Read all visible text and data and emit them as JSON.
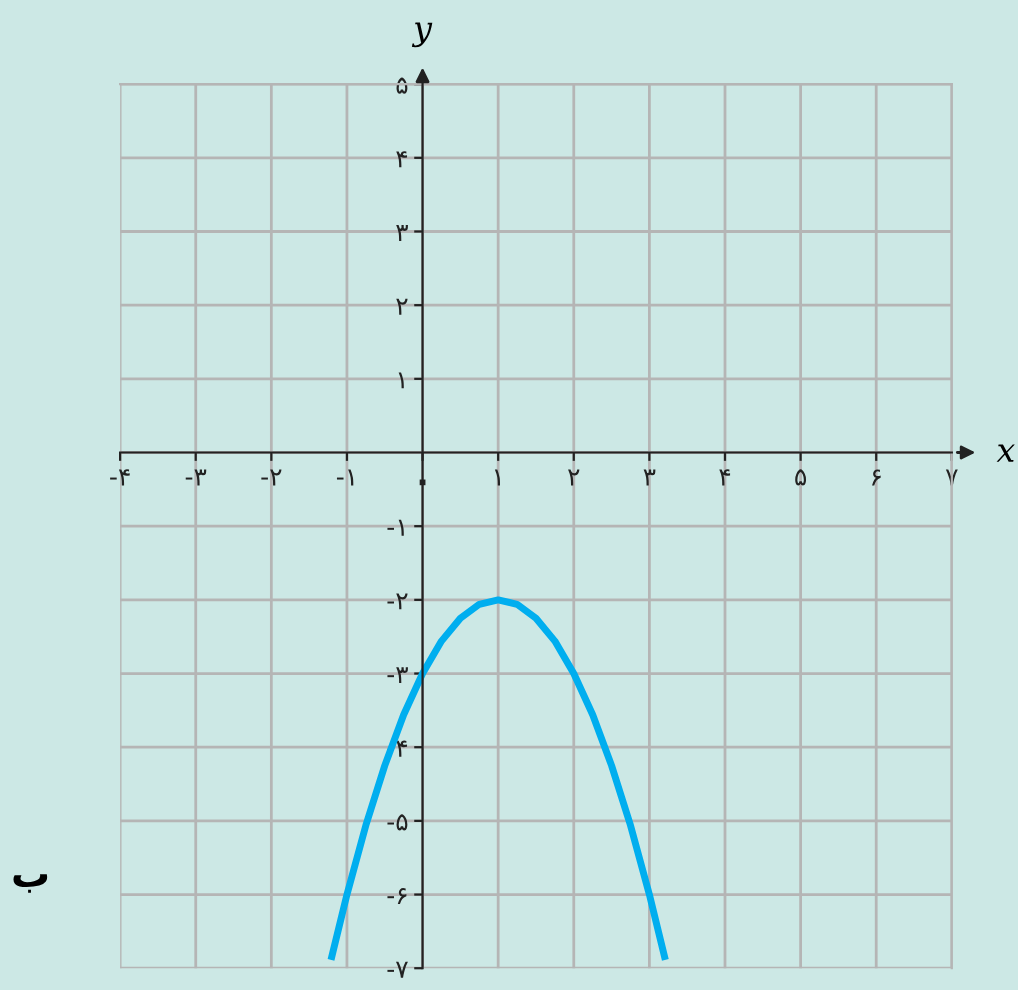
{
  "chart_data": {
    "type": "line",
    "xlabel": "x",
    "ylabel": "y",
    "x": [
      -1.2,
      -1,
      -0.75,
      -0.5,
      -0.25,
      0,
      0.25,
      0.5,
      0.75,
      1,
      1.25,
      1.5,
      1.75,
      2,
      2.25,
      2.5,
      2.75,
      3,
      3.2
    ],
    "series": [
      {
        "color": "#00aeef",
        "values": [
          -6.84,
          -6,
          -5.06,
          -4.25,
          -3.56,
          -3,
          -2.56,
          -2.25,
          -2.06,
          -2,
          -2.06,
          -2.25,
          -2.56,
          -3,
          -3.56,
          -4.25,
          -5.06,
          -6,
          -6.84
        ]
      }
    ],
    "xlim": [
      -4,
      7
    ],
    "ylim": [
      -7,
      5
    ],
    "xticks": [
      {
        "value": -4,
        "label": "-۴"
      },
      {
        "value": -3,
        "label": "-۳"
      },
      {
        "value": -2,
        "label": "-۲"
      },
      {
        "value": -1,
        "label": "-۱"
      },
      {
        "value": 0,
        "label": "۰"
      },
      {
        "value": 1,
        "label": "۱"
      },
      {
        "value": 2,
        "label": "۲"
      },
      {
        "value": 3,
        "label": "۳"
      },
      {
        "value": 4,
        "label": "۴"
      },
      {
        "value": 5,
        "label": "۵"
      },
      {
        "value": 6,
        "label": "۶"
      },
      {
        "value": 7,
        "label": "۷"
      }
    ],
    "yticks": [
      {
        "value": -7,
        "label": "-۷"
      },
      {
        "value": -6,
        "label": "-۶"
      },
      {
        "value": -5,
        "label": "-۵"
      },
      {
        "value": -4,
        "label": "-۴"
      },
      {
        "value": -3,
        "label": "-۳"
      },
      {
        "value": -2,
        "label": "-۲"
      },
      {
        "value": -1,
        "label": "-۱"
      },
      {
        "value": 1,
        "label": "۱"
      },
      {
        "value": 2,
        "label": "۲"
      },
      {
        "value": 3,
        "label": "۳"
      },
      {
        "value": 4,
        "label": "۴"
      },
      {
        "value": 5,
        "label": "۵"
      }
    ],
    "grid": true,
    "marker": "none",
    "line_style": "solid",
    "annotations": [
      "ب"
    ]
  }
}
